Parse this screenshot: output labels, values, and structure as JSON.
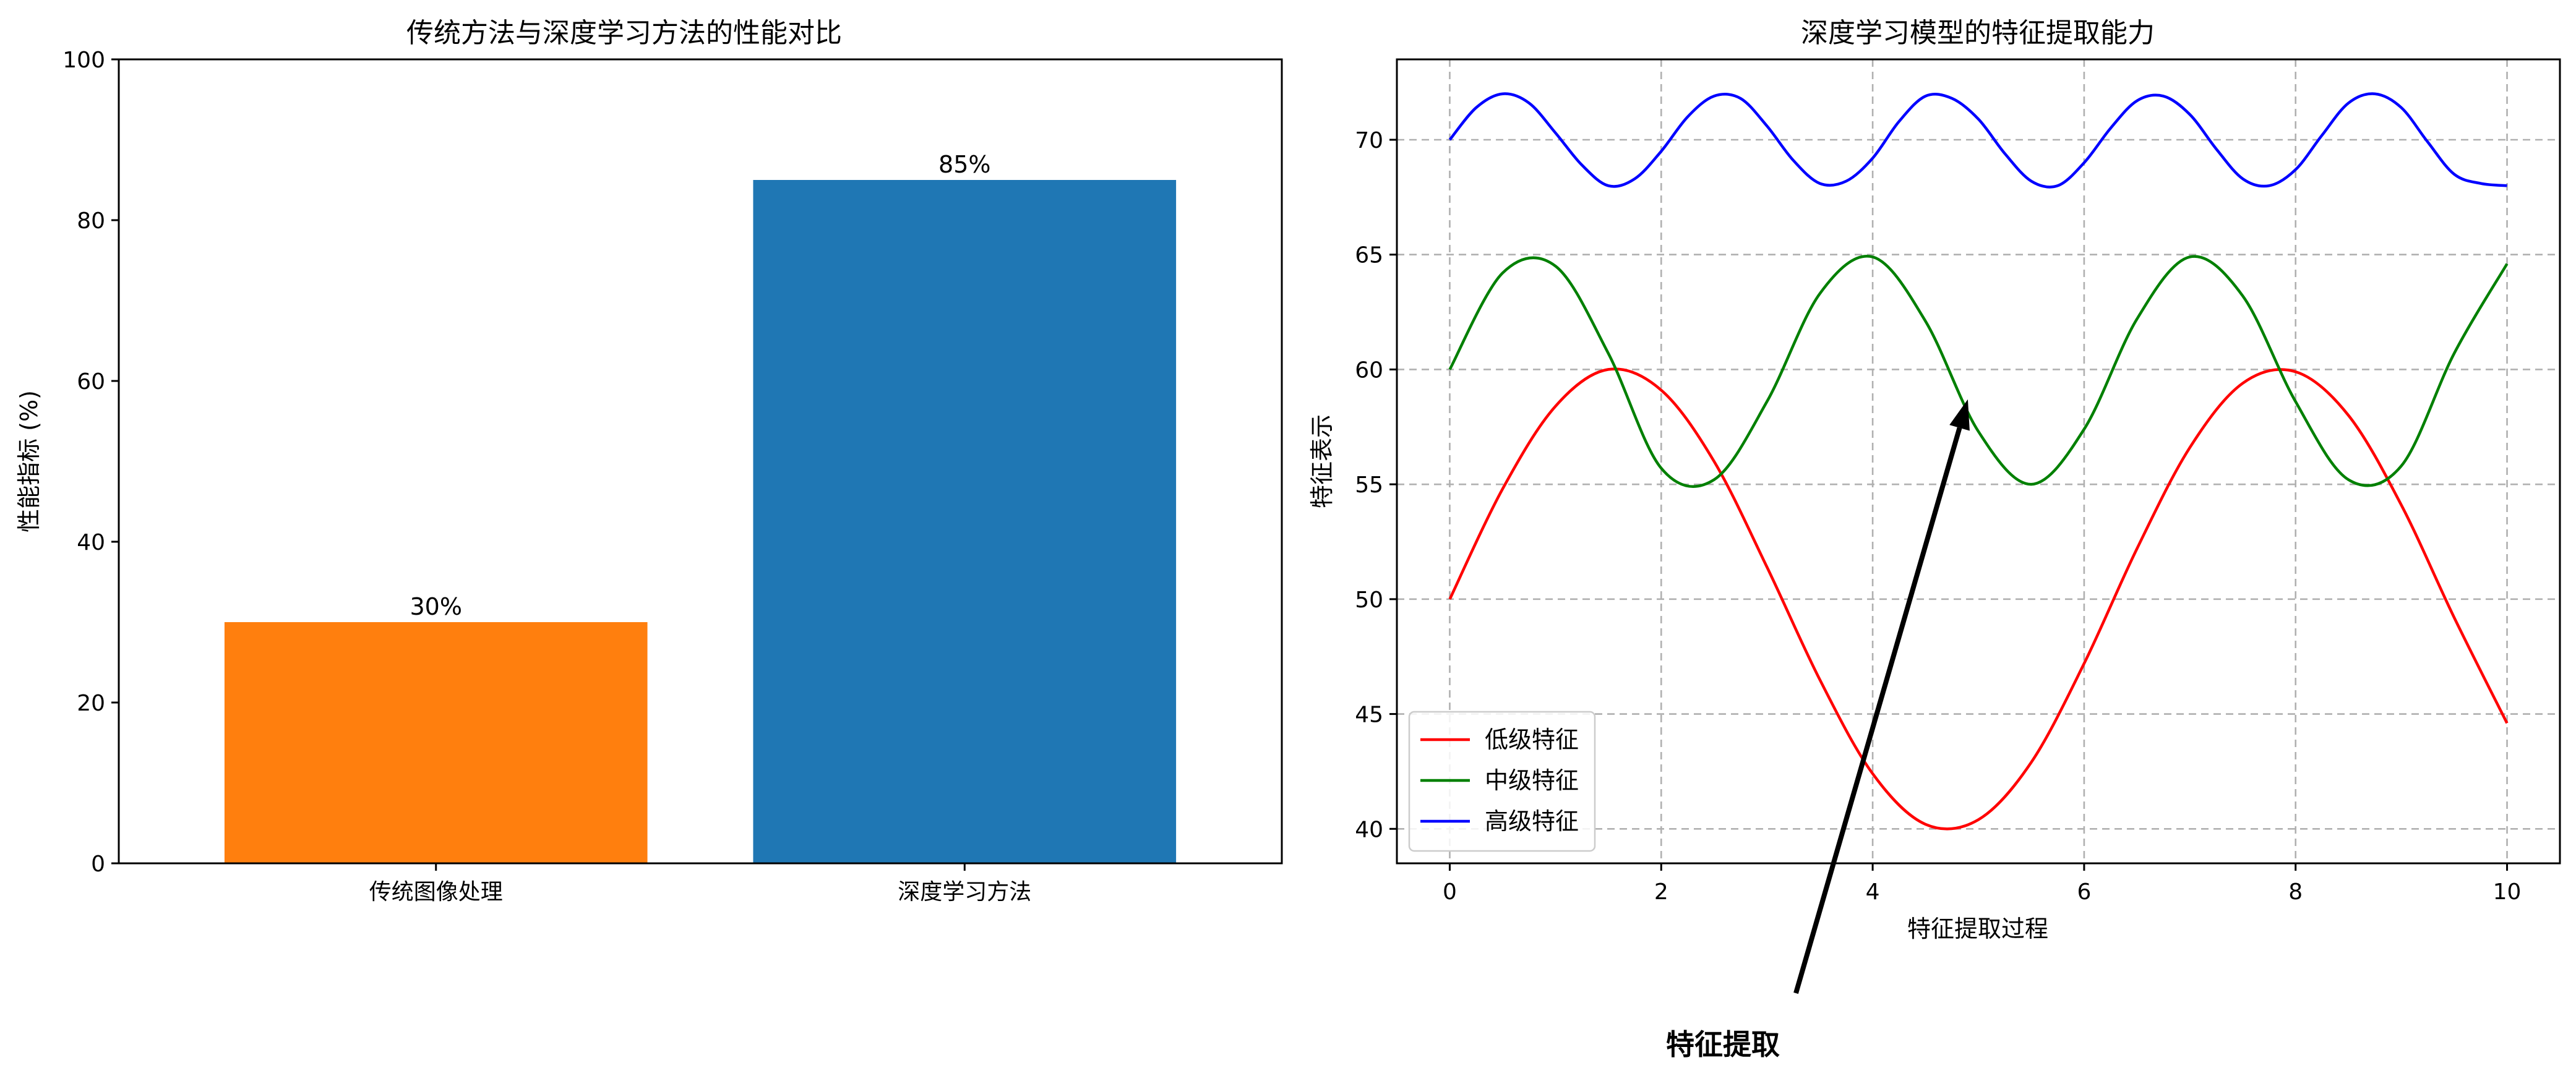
{
  "chart_data": [
    {
      "type": "bar",
      "title": "传统方法与深度学习方法的性能对比",
      "xlabel": "",
      "ylabel": "性能指标 (%)",
      "ylim": [
        0,
        100
      ],
      "yticks": [
        0,
        20,
        40,
        60,
        80,
        100
      ],
      "categories": [
        "传统图像处理",
        "深度学习方法"
      ],
      "values": [
        30,
        85
      ],
      "colors": [
        "#ff7f0e",
        "#1f77b4"
      ],
      "data_labels": [
        "30%",
        "85%"
      ]
    },
    {
      "type": "line",
      "title": "深度学习模型的特征提取能力",
      "xlabel": "特征提取过程",
      "ylabel": "特征表示",
      "xlim": [
        -0.5,
        10.5
      ],
      "ylim": [
        38.5,
        73.5
      ],
      "xticks": [
        0,
        2,
        4,
        6,
        8,
        10
      ],
      "yticks": [
        40,
        45,
        50,
        55,
        60,
        65,
        70
      ],
      "grid": true,
      "legend_position": "lower-left",
      "series": [
        {
          "name": "低级特征",
          "color": "#ff0000",
          "x": [
            0,
            0.5,
            1,
            1.5,
            2,
            2.5,
            3,
            3.5,
            4,
            4.5,
            5,
            5.5,
            6,
            6.5,
            7,
            7.5,
            8,
            8.5,
            9,
            9.5,
            10
          ],
          "y": [
            50,
            54.8,
            58.4,
            60,
            59.1,
            56,
            51.4,
            46.5,
            42.4,
            40.2,
            40.4,
            42.9,
            47.2,
            52.2,
            56.6,
            59.4,
            59.9,
            58,
            54.1,
            49.2,
            44.6
          ]
        },
        {
          "name": "中级特征",
          "color": "#008000",
          "x": [
            0,
            0.5,
            1,
            1.5,
            2,
            2.5,
            3,
            3.5,
            4,
            4.5,
            5,
            5.5,
            6,
            6.5,
            7,
            7.5,
            8,
            8.5,
            9,
            9.5,
            10
          ],
          "y": [
            60,
            64.2,
            64.5,
            60.7,
            55.7,
            55.2,
            58.6,
            63.3,
            64.9,
            62.1,
            57.3,
            55,
            57.4,
            62.2,
            64.9,
            63.2,
            58.6,
            55.2,
            55.8,
            60.7,
            64.6
          ]
        },
        {
          "name": "高级特征",
          "color": "#0000ff",
          "x": [
            0,
            0.25,
            0.5,
            0.75,
            1,
            1.25,
            1.5,
            1.75,
            2,
            2.25,
            2.5,
            2.75,
            3,
            3.25,
            3.5,
            3.75,
            4,
            4.25,
            4.5,
            4.75,
            5,
            5.25,
            5.5,
            5.75,
            6,
            6.25,
            6.5,
            6.75,
            7,
            7.25,
            7.5,
            7.75,
            8,
            8.25,
            8.5,
            8.75,
            9,
            9.25,
            9.5,
            9.75,
            10
          ],
          "y": [
            70,
            71.4,
            72,
            71.6,
            70.3,
            68.9,
            68,
            68.3,
            69.5,
            71,
            71.9,
            71.8,
            70.6,
            69.1,
            68.1,
            68.2,
            69.2,
            70.8,
            71.9,
            71.8,
            70.9,
            69.4,
            68.2,
            68,
            69,
            70.5,
            71.7,
            71.9,
            71.1,
            69.6,
            68.3,
            68,
            68.7,
            70.2,
            71.6,
            72,
            71.4,
            69.9,
            68.5,
            68.1,
            68
          ]
        }
      ],
      "annotation": {
        "text": "特征提取",
        "xy": [
          4.9,
          58.7
        ]
      }
    }
  ]
}
